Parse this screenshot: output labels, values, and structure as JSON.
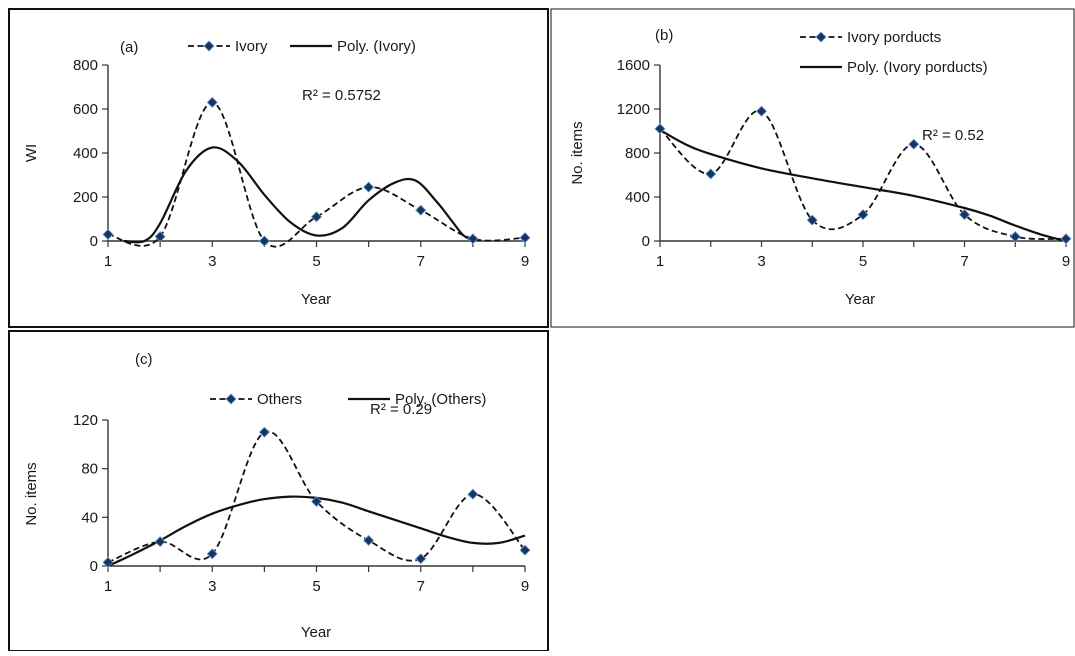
{
  "chart_data": [
    {
      "type": "line",
      "panel_label": "(a)",
      "xlabel": "Year",
      "ylabel": "WI",
      "xlim": [
        1,
        9
      ],
      "ylim": [
        0,
        800
      ],
      "x_ticks": [
        "1",
        "3",
        "5",
        "7",
        "9"
      ],
      "y_ticks": [
        "0",
        "200",
        "400",
        "600",
        "800"
      ],
      "annotation": "R² = 0.5752",
      "legend_position": "top",
      "series": [
        {
          "name": "Ivory",
          "style": "dashed-markers",
          "x": [
            1,
            2,
            3,
            4,
            5,
            6,
            7,
            8,
            9
          ],
          "values": [
            30,
            20,
            630,
            0,
            110,
            245,
            140,
            10,
            15
          ]
        },
        {
          "name": "Poly. (Ivory)",
          "style": "solid-trendline",
          "x": [
            1.3,
            1.7,
            2.0,
            2.5,
            3.0,
            3.5,
            4.0,
            4.5,
            5.0,
            5.5,
            6.0,
            6.5,
            6.9,
            7.3,
            7.6,
            7.8,
            8.0
          ],
          "values": [
            0,
            0,
            80,
            320,
            425,
            360,
            210,
            85,
            25,
            60,
            185,
            265,
            275,
            180,
            90,
            30,
            0
          ]
        }
      ]
    },
    {
      "type": "line",
      "panel_label": "(b)",
      "xlabel": "Year",
      "ylabel": "No. items",
      "xlim": [
        1,
        9
      ],
      "ylim": [
        0,
        1600
      ],
      "x_ticks": [
        "1",
        "3",
        "5",
        "7",
        "9"
      ],
      "y_ticks": [
        "0",
        "400",
        "800",
        "1200",
        "1600"
      ],
      "annotation": "R² = 0.52",
      "legend_position": "top-right",
      "series": [
        {
          "name": "Ivory porducts",
          "style": "dashed-markers",
          "x": [
            1,
            2,
            3,
            4,
            5,
            6,
            7,
            8,
            9
          ],
          "values": [
            1020,
            610,
            1180,
            190,
            240,
            880,
            240,
            40,
            20
          ]
        },
        {
          "name": "Poly. (Ivory porducts)",
          "style": "solid-trendline",
          "x": [
            1,
            1.5,
            2,
            3,
            4,
            5,
            6,
            7,
            7.5,
            8,
            8.5,
            9
          ],
          "values": [
            1010,
            880,
            790,
            660,
            570,
            490,
            410,
            300,
            230,
            140,
            60,
            0
          ]
        }
      ]
    },
    {
      "type": "line",
      "panel_label": "(c)",
      "xlabel": "Year",
      "ylabel": "No. items",
      "xlim": [
        1,
        9
      ],
      "ylim": [
        0,
        120
      ],
      "x_ticks": [
        "1",
        "3",
        "5",
        "7",
        "9"
      ],
      "y_ticks": [
        "0",
        "40",
        "80",
        "120"
      ],
      "annotation": "R² = 0.29",
      "legend_position": "top",
      "series": [
        {
          "name": "Others",
          "style": "dashed-markers",
          "x": [
            1,
            2,
            3,
            4,
            5,
            6,
            7,
            8,
            9
          ],
          "values": [
            3,
            20,
            10,
            110,
            53,
            21,
            6,
            59,
            13
          ]
        },
        {
          "name": "Poly. (Others)",
          "style": "solid-trendline",
          "x": [
            1,
            1.5,
            2,
            2.5,
            3,
            3.5,
            4,
            4.5,
            5,
            5.5,
            6,
            6.5,
            7,
            7.5,
            8,
            8.5,
            9
          ],
          "values": [
            0,
            10,
            21,
            33,
            43,
            50,
            55,
            57,
            56,
            52,
            45,
            38,
            31,
            24,
            19,
            19,
            25
          ]
        }
      ]
    }
  ]
}
